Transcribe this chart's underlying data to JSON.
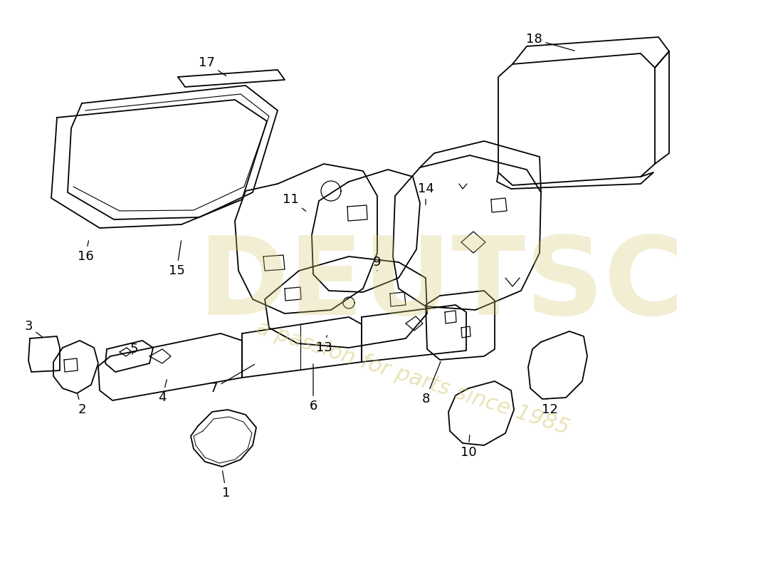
{
  "background_color": "#ffffff",
  "line_color": "#000000",
  "watermark_color": "#d4c870",
  "lw": 1.3
}
